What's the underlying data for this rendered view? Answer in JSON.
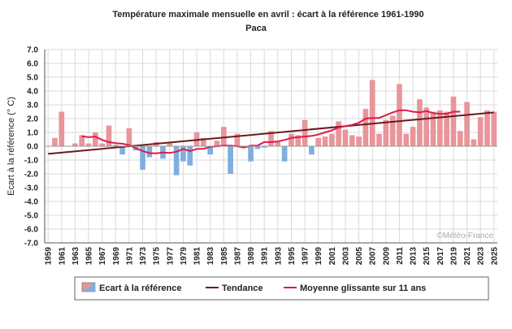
{
  "chart_data": {
    "type": "bar",
    "title": "Température maximale mensuelle en avril : écart à la référence 1961-1990",
    "subtitle": "Paca",
    "ylabel": "Ecart à la référence (° C)",
    "xlabel": "",
    "ylim": [
      -7,
      7
    ],
    "yticks": [
      7.0,
      6.0,
      5.0,
      4.0,
      3.0,
      2.0,
      1.0,
      0.0,
      -1.0,
      -2.0,
      -3.0,
      -4.0,
      -5.0,
      -6.0,
      -7.0
    ],
    "ytick_labels": [
      "7.0",
      "6.0",
      "5.0",
      "4.0",
      "3.0",
      "2.0",
      "1.0",
      "0.0",
      "-1.0",
      "-2.0",
      "-3.0",
      "-4.0",
      "-5.0",
      "-6.0",
      "-7.0"
    ],
    "grid": true,
    "x_tick_labels": [
      "1959",
      "1961",
      "1963",
      "1965",
      "1967",
      "1969",
      "1971",
      "1973",
      "1975",
      "1977",
      "1979",
      "1981",
      "1983",
      "1985",
      "1987",
      "1989",
      "1991",
      "1993",
      "1995",
      "1997",
      "1999",
      "2001",
      "2003",
      "2005",
      "2007",
      "2009",
      "2011",
      "2013",
      "2015",
      "2017",
      "2019",
      "2021",
      "2023",
      "2025"
    ],
    "years": [
      1959,
      1960,
      1961,
      1962,
      1963,
      1964,
      1965,
      1966,
      1967,
      1968,
      1969,
      1970,
      1971,
      1972,
      1973,
      1974,
      1975,
      1976,
      1977,
      1978,
      1979,
      1980,
      1981,
      1982,
      1983,
      1984,
      1985,
      1986,
      1987,
      1988,
      1989,
      1990,
      1991,
      1992,
      1993,
      1994,
      1995,
      1996,
      1997,
      1998,
      1999,
      2000,
      2001,
      2002,
      2003,
      2004,
      2005,
      2006,
      2007,
      2008,
      2009,
      2010,
      2011,
      2012,
      2013,
      2014,
      2015,
      2016,
      2017,
      2018,
      2019,
      2020,
      2021,
      2022,
      2023,
      2024,
      2025
    ],
    "series": [
      {
        "name": "Ecart à la référence",
        "values": [
          0.0,
          0.6,
          2.5,
          0.0,
          0.2,
          0.8,
          0.2,
          1.0,
          0.2,
          1.5,
          0.1,
          -0.6,
          1.3,
          -0.3,
          -1.7,
          -0.8,
          0.3,
          -0.9,
          0.3,
          -2.1,
          -1.1,
          -1.4,
          1.0,
          0.6,
          -0.6,
          0.4,
          1.4,
          -2.0,
          0.9,
          0.0,
          -1.1,
          -0.2,
          -0.1,
          1.1,
          0.3,
          -1.1,
          0.9,
          0.8,
          1.9,
          -0.6,
          0.6,
          0.7,
          0.9,
          1.8,
          1.2,
          0.8,
          0.7,
          2.7,
          4.8,
          0.9,
          1.9,
          2.2,
          4.5,
          0.9,
          1.4,
          3.4,
          2.8,
          2.5,
          2.6,
          2.5,
          3.6,
          1.1,
          3.2,
          0.5,
          2.1,
          2.6,
          2.5
        ],
        "positive_color": "#e8959b",
        "negative_color": "#7faee0"
      },
      {
        "name": "Tendance",
        "values": [
          -0.55,
          2.45
        ],
        "x": [
          1959,
          2025
        ],
        "color": "#6b1b1b"
      },
      {
        "name": "Moyenne glissante sur 11 ans",
        "x": [
          1964,
          1965,
          1966,
          1967,
          1968,
          1969,
          1970,
          1971,
          1972,
          1973,
          1974,
          1975,
          1976,
          1977,
          1978,
          1979,
          1980,
          1981,
          1982,
          1983,
          1984,
          1985,
          1986,
          1987,
          1988,
          1989,
          1990,
          1991,
          1992,
          1993,
          1994,
          1995,
          1996,
          1997,
          1998,
          1999,
          2000,
          2001,
          2002,
          2003,
          2004,
          2005,
          2006,
          2007,
          2008,
          2009,
          2010,
          2011,
          2012,
          2013,
          2014,
          2015,
          2016,
          2017,
          2018,
          2019,
          2020
        ],
        "values": [
          0.72,
          0.65,
          0.7,
          0.45,
          0.3,
          0.22,
          0.18,
          0.08,
          -0.15,
          -0.35,
          -0.5,
          -0.52,
          -0.45,
          -0.48,
          -0.4,
          -0.2,
          -0.35,
          -0.2,
          -0.18,
          -0.05,
          0.0,
          0.05,
          0.05,
          0.0,
          -0.1,
          0.05,
          0.05,
          0.3,
          0.3,
          0.35,
          0.45,
          0.6,
          0.65,
          0.7,
          0.75,
          0.85,
          1.0,
          1.15,
          1.35,
          1.45,
          1.55,
          1.7,
          2.0,
          2.05,
          2.05,
          2.25,
          2.45,
          2.6,
          2.6,
          2.5,
          2.45,
          2.55,
          2.4,
          2.35,
          2.35,
          2.5,
          2.5
        ],
        "color": "#e0194a"
      }
    ],
    "legend": {
      "placement": "bottom",
      "items": [
        "Ecart à la référence",
        "Tendance",
        "Moyenne glissante sur 11 ans"
      ]
    },
    "credit": "©Météo-France"
  }
}
